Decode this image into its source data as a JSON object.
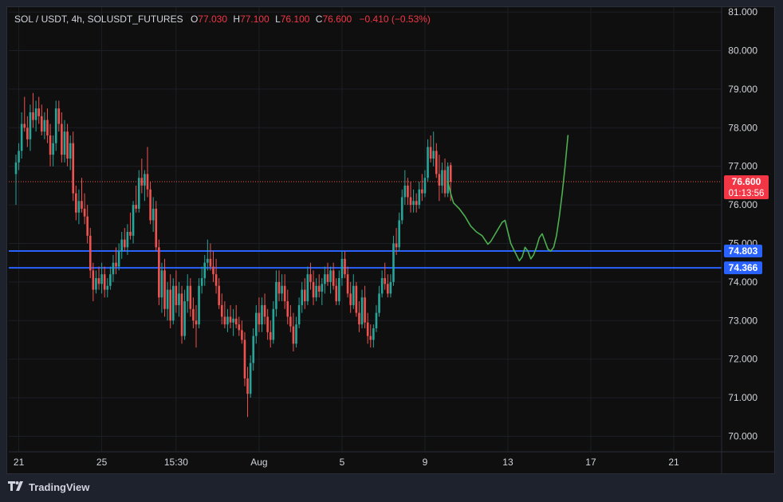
{
  "legend": {
    "symbol": "SOL / USDT, 4h, SOLUSDT_FUTURES",
    "o_label": "O",
    "o_value": "77.030",
    "h_label": "H",
    "h_value": "77.100",
    "l_label": "L",
    "l_value": "76.100",
    "c_label": "C",
    "c_value": "76.600",
    "change": "−0.410 (−0.53%)"
  },
  "footer": {
    "brand": "TradingView",
    "logo_icon": "tradingview-logo-icon"
  },
  "colors": {
    "bg": "#0f0f0f",
    "up": "#26a69a",
    "down": "#ef5350",
    "hline": "#2962ff",
    "drawing": "#4caf50",
    "price_badge": "#f23645",
    "level_badge": "#2962ff"
  },
  "chart_data": {
    "type": "candlestick",
    "symbol": "SOL / USDT",
    "timeframe": "4h",
    "y_axis": {
      "ticks": [
        "81.000",
        "80.000",
        "79.000",
        "78.000",
        "77.000",
        "76.000",
        "75.000",
        "74.000",
        "73.000",
        "72.000",
        "71.000",
        "70.000"
      ],
      "ylim": [
        69.6,
        81.3
      ]
    },
    "x_axis": {
      "ticks": [
        "21",
        "25",
        "15:30",
        "Aug",
        "5",
        "9",
        "13",
        "17",
        "21"
      ],
      "tick_index": [
        1,
        30,
        56,
        85,
        114,
        143,
        172,
        201,
        230
      ]
    },
    "current_price": {
      "value": "76.600",
      "countdown": "01:13:56"
    },
    "horizontal_levels": [
      {
        "value": "74.803"
      },
      {
        "value": "74.366"
      }
    ],
    "candles": [
      [
        76.8,
        77.3,
        76.0,
        77.1
      ],
      [
        77.1,
        77.6,
        76.9,
        77.4
      ],
      [
        77.4,
        78.4,
        77.2,
        78.1
      ],
      [
        78.1,
        78.8,
        77.9,
        78.0
      ],
      [
        78.0,
        78.3,
        77.5,
        77.7
      ],
      [
        77.7,
        78.6,
        77.4,
        78.4
      ],
      [
        78.4,
        78.9,
        78.0,
        78.2
      ],
      [
        78.2,
        78.7,
        77.9,
        78.5
      ],
      [
        78.5,
        78.8,
        78.1,
        78.3
      ],
      [
        78.3,
        78.6,
        77.8,
        77.9
      ],
      [
        77.9,
        78.4,
        77.7,
        78.2
      ],
      [
        78.2,
        78.5,
        77.6,
        77.8
      ],
      [
        77.8,
        78.1,
        77.0,
        77.3
      ],
      [
        77.3,
        77.8,
        77.0,
        77.6
      ],
      [
        77.6,
        78.7,
        77.4,
        78.5
      ],
      [
        78.5,
        78.7,
        77.9,
        78.1
      ],
      [
        78.1,
        78.4,
        77.1,
        77.3
      ],
      [
        77.3,
        78.2,
        77.1,
        77.9
      ],
      [
        77.9,
        78.1,
        77.0,
        77.2
      ],
      [
        77.2,
        77.8,
        76.9,
        77.6
      ],
      [
        77.6,
        77.9,
        76.1,
        76.3
      ],
      [
        76.3,
        76.5,
        75.6,
        75.8
      ],
      [
        75.8,
        76.4,
        75.5,
        76.1
      ],
      [
        76.1,
        76.7,
        75.8,
        75.9
      ],
      [
        75.9,
        76.3,
        75.5,
        75.7
      ],
      [
        75.7,
        76.0,
        75.0,
        75.2
      ],
      [
        75.2,
        75.4,
        74.1,
        74.3
      ],
      [
        74.3,
        74.5,
        73.5,
        73.8
      ],
      [
        73.8,
        74.3,
        73.7,
        74.1
      ],
      [
        74.1,
        74.4,
        73.8,
        73.95
      ],
      [
        73.95,
        74.5,
        73.7,
        74.2
      ],
      [
        74.2,
        74.4,
        73.6,
        73.8
      ],
      [
        73.8,
        74.1,
        73.6,
        73.9
      ],
      [
        73.9,
        74.4,
        73.8,
        74.2
      ],
      [
        74.2,
        74.7,
        74.0,
        74.5
      ],
      [
        74.5,
        74.9,
        74.2,
        74.4
      ],
      [
        74.4,
        75.0,
        74.3,
        74.8
      ],
      [
        74.8,
        75.3,
        74.6,
        75.1
      ],
      [
        75.1,
        75.4,
        74.8,
        74.9
      ],
      [
        74.9,
        75.5,
        74.7,
        75.3
      ],
      [
        75.3,
        75.8,
        75.1,
        75.2
      ],
      [
        75.2,
        76.1,
        75.0,
        76.0
      ],
      [
        76.0,
        76.5,
        75.8,
        75.9
      ],
      [
        75.9,
        76.9,
        75.8,
        76.7
      ],
      [
        76.7,
        77.2,
        76.3,
        76.5
      ],
      [
        76.5,
        76.9,
        76.1,
        76.8
      ],
      [
        76.8,
        77.5,
        76.2,
        76.4
      ],
      [
        76.4,
        76.6,
        75.5,
        75.6
      ],
      [
        75.6,
        76.2,
        75.3,
        75.9
      ],
      [
        75.9,
        76.1,
        74.8,
        74.9
      ],
      [
        74.9,
        75.1,
        73.4,
        73.6
      ],
      [
        73.6,
        74.5,
        73.2,
        74.3
      ],
      [
        74.3,
        74.6,
        73.1,
        73.3
      ],
      [
        73.3,
        74.0,
        73.0,
        73.8
      ],
      [
        73.8,
        74.2,
        72.8,
        73.0
      ],
      [
        73.0,
        74.1,
        72.9,
        73.9
      ],
      [
        73.9,
        74.3,
        73.2,
        73.4
      ],
      [
        73.4,
        74.0,
        73.1,
        73.7
      ],
      [
        73.7,
        73.9,
        72.4,
        72.6
      ],
      [
        72.6,
        73.8,
        72.5,
        73.5
      ],
      [
        73.5,
        74.2,
        73.2,
        73.9
      ],
      [
        73.9,
        74.1,
        73.1,
        73.3
      ],
      [
        73.3,
        73.6,
        72.8,
        73.0
      ],
      [
        73.0,
        73.4,
        72.3,
        72.9
      ],
      [
        72.9,
        74.1,
        72.8,
        73.9
      ],
      [
        73.9,
        74.4,
        73.7,
        74.1
      ],
      [
        74.1,
        74.7,
        73.9,
        74.5
      ],
      [
        74.5,
        75.1,
        74.3,
        74.6
      ],
      [
        74.6,
        75.0,
        74.3,
        74.4
      ],
      [
        74.4,
        74.8,
        74.0,
        74.2
      ],
      [
        74.2,
        74.6,
        73.7,
        73.9
      ],
      [
        73.9,
        74.1,
        73.3,
        73.4
      ],
      [
        73.4,
        73.7,
        72.9,
        73.1
      ],
      [
        73.1,
        73.5,
        72.8,
        72.9
      ],
      [
        72.9,
        73.3,
        72.7,
        73.1
      ],
      [
        73.1,
        73.4,
        72.8,
        72.95
      ],
      [
        72.95,
        73.3,
        72.6,
        73.05
      ],
      [
        73.05,
        73.4,
        72.8,
        72.9
      ],
      [
        72.9,
        73.1,
        72.6,
        72.75
      ],
      [
        72.75,
        73.0,
        72.4,
        72.5
      ],
      [
        72.5,
        72.7,
        71.3,
        71.5
      ],
      [
        71.5,
        71.8,
        70.5,
        71.1
      ],
      [
        71.1,
        72.1,
        71.0,
        71.9
      ],
      [
        71.9,
        72.8,
        71.7,
        72.6
      ],
      [
        72.6,
        73.4,
        72.4,
        73.2
      ],
      [
        73.2,
        73.6,
        72.7,
        72.9
      ],
      [
        72.9,
        73.6,
        72.7,
        73.4
      ],
      [
        73.4,
        73.7,
        72.9,
        73.1
      ],
      [
        73.1,
        73.3,
        72.5,
        72.7
      ],
      [
        72.7,
        73.0,
        72.3,
        72.5
      ],
      [
        72.5,
        73.5,
        72.4,
        73.3
      ],
      [
        73.3,
        74.3,
        73.1,
        74.0
      ],
      [
        74.0,
        74.3,
        73.5,
        73.7
      ],
      [
        73.7,
        74.2,
        73.5,
        73.9
      ],
      [
        73.9,
        74.2,
        73.3,
        73.5
      ],
      [
        73.5,
        73.8,
        72.9,
        73.1
      ],
      [
        73.1,
        73.4,
        72.7,
        72.85
      ],
      [
        72.85,
        73.2,
        72.2,
        72.4
      ],
      [
        72.4,
        73.1,
        72.3,
        72.9
      ],
      [
        72.9,
        73.6,
        72.8,
        73.4
      ],
      [
        73.4,
        74.0,
        73.2,
        73.8
      ],
      [
        73.8,
        74.1,
        73.3,
        73.5
      ],
      [
        73.5,
        74.4,
        73.4,
        74.2
      ],
      [
        74.2,
        74.5,
        73.8,
        74.0
      ],
      [
        74.0,
        74.3,
        73.4,
        73.6
      ],
      [
        73.6,
        74.1,
        73.5,
        73.9
      ],
      [
        73.9,
        74.2,
        73.6,
        73.75
      ],
      [
        73.75,
        74.1,
        73.4,
        73.95
      ],
      [
        73.95,
        74.4,
        73.7,
        74.2
      ],
      [
        74.2,
        74.5,
        73.9,
        74.0
      ],
      [
        74.0,
        74.4,
        73.7,
        74.3
      ],
      [
        74.3,
        74.5,
        73.8,
        73.9
      ],
      [
        73.9,
        74.1,
        73.4,
        73.5
      ],
      [
        73.5,
        74.3,
        73.4,
        74.1
      ],
      [
        74.1,
        74.8,
        73.9,
        74.6
      ],
      [
        74.6,
        74.8,
        74.1,
        74.2
      ],
      [
        74.2,
        74.4,
        73.6,
        73.7
      ],
      [
        73.7,
        74.0,
        73.2,
        73.4
      ],
      [
        73.4,
        74.2,
        73.3,
        73.9
      ],
      [
        73.9,
        74.0,
        73.1,
        73.2
      ],
      [
        73.2,
        73.5,
        72.7,
        72.9
      ],
      [
        72.9,
        73.8,
        72.8,
        73.6
      ],
      [
        73.6,
        73.9,
        72.8,
        72.95
      ],
      [
        72.95,
        73.2,
        72.4,
        72.6
      ],
      [
        72.6,
        72.9,
        72.3,
        72.5
      ],
      [
        72.5,
        72.9,
        72.3,
        72.8
      ],
      [
        72.8,
        73.4,
        72.7,
        73.2
      ],
      [
        73.2,
        73.9,
        73.1,
        73.7
      ],
      [
        73.7,
        74.3,
        73.6,
        74.1
      ],
      [
        74.1,
        74.5,
        73.8,
        73.95
      ],
      [
        73.95,
        74.2,
        73.6,
        73.7
      ],
      [
        73.7,
        74.2,
        73.6,
        74.0
      ],
      [
        74.0,
        75.2,
        73.9,
        75.0
      ],
      [
        75.0,
        75.4,
        74.7,
        74.9
      ],
      [
        74.9,
        75.8,
        74.8,
        75.6
      ],
      [
        75.6,
        76.4,
        75.5,
        76.2
      ],
      [
        76.2,
        76.9,
        76.0,
        76.5
      ],
      [
        76.5,
        76.7,
        76.0,
        76.2
      ],
      [
        76.2,
        76.6,
        75.8,
        76.0
      ],
      [
        76.0,
        76.4,
        75.8,
        76.1
      ],
      [
        76.1,
        76.3,
        75.8,
        76.0
      ],
      [
        76.0,
        76.6,
        75.9,
        76.4
      ],
      [
        76.4,
        76.8,
        76.1,
        76.3
      ],
      [
        76.3,
        76.9,
        76.2,
        76.7
      ],
      [
        76.7,
        77.7,
        76.6,
        77.5
      ],
      [
        77.5,
        77.8,
        77.1,
        77.2
      ],
      [
        77.2,
        77.9,
        77.0,
        77.4
      ],
      [
        77.4,
        77.6,
        76.7,
        76.8
      ],
      [
        76.8,
        77.3,
        76.1,
        76.5
      ],
      [
        76.5,
        77.1,
        76.3,
        76.9
      ],
      [
        76.9,
        77.2,
        76.2,
        76.3
      ],
      [
        76.3,
        77.1,
        76.2,
        77.0
      ],
      [
        77.03,
        77.1,
        76.1,
        76.6
      ]
    ],
    "annotation_path": {
      "description": "hand-drawn projected price path",
      "points": [
        [
          151,
          76.6
        ],
        [
          152,
          76.3
        ],
        [
          153,
          76.05
        ],
        [
          155,
          75.9
        ],
        [
          157,
          75.7
        ],
        [
          159,
          75.45
        ],
        [
          161,
          75.3
        ],
        [
          163,
          75.2
        ],
        [
          165,
          74.98
        ],
        [
          166,
          75.05
        ],
        [
          168,
          75.3
        ],
        [
          170,
          75.55
        ],
        [
          171,
          75.6
        ],
        [
          172,
          75.3
        ],
        [
          173,
          75.0
        ],
        [
          174,
          74.85
        ],
        [
          175,
          74.7
        ],
        [
          176,
          74.55
        ],
        [
          177,
          74.65
        ],
        [
          178,
          74.9
        ],
        [
          179,
          74.8
        ],
        [
          180,
          74.6
        ],
        [
          181,
          74.7
        ],
        [
          182,
          74.9
        ],
        [
          183,
          75.15
        ],
        [
          184,
          75.25
        ],
        [
          185,
          75.05
        ],
        [
          186,
          74.85
        ],
        [
          187,
          74.8
        ],
        [
          188,
          74.9
        ],
        [
          189,
          75.2
        ],
        [
          190,
          75.7
        ],
        [
          191,
          76.3
        ],
        [
          192,
          77.0
        ],
        [
          193,
          77.8
        ]
      ]
    }
  }
}
